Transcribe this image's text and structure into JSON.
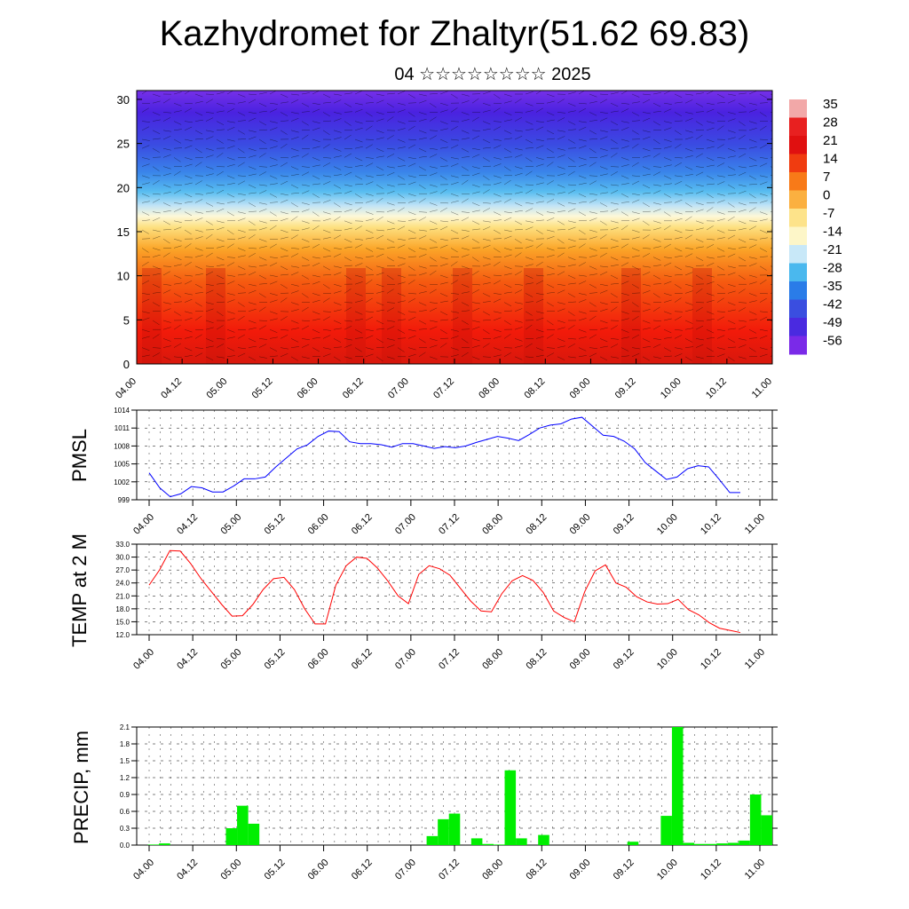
{
  "title": "Kazhydromet for Zhaltyr(51.62 69.83)",
  "subtitle": "04 ☆☆☆☆☆☆☆☆ 2025",
  "chart_data": [
    {
      "type": "heatmap",
      "name": "cross-section",
      "y_ticks": [
        0,
        5,
        10,
        15,
        20,
        25,
        30
      ],
      "ylim": [
        0,
        31
      ],
      "x_ticks": [
        "04.00",
        "04.12",
        "05.00",
        "05.12",
        "06.00",
        "06.12",
        "07.00",
        "07.12",
        "08.00",
        "08.12",
        "09.00",
        "09.12",
        "10.00",
        "10.12",
        "11.00"
      ],
      "colorbar_labels": [
        "35",
        "28",
        "21",
        "14",
        "7",
        "0",
        "-7",
        "-14",
        "-21",
        "-28",
        "-35",
        "-42",
        "-49",
        "-56"
      ],
      "colorbar_colors": [
        "#f2a8a8",
        "#e82020",
        "#e01010",
        "#f03c10",
        "#f87a18",
        "#fbb040",
        "#fde38a",
        "#fdf6c8",
        "#c8e8f8",
        "#4ab8ee",
        "#2a7ce8",
        "#3a4ee0",
        "#4a2ae0",
        "#7a2ae8"
      ],
      "temperature_profile_legend": "colors follow colorbar; warm near surface, cold aloft",
      "wind_barbs": true
    },
    {
      "type": "line",
      "name": "PMSL",
      "ylabel": "PMSL",
      "y_ticks": [
        999,
        1002,
        1005,
        1008,
        1011,
        1014
      ],
      "ylim": [
        999,
        1014
      ],
      "x_ticks": [
        "04.00",
        "04.12",
        "05.00",
        "05.12",
        "06.00",
        "06.12",
        "07.00",
        "07.12",
        "08.00",
        "08.12",
        "09.00",
        "09.12",
        "10.00",
        "10.12",
        "11.00"
      ],
      "color": "#0000ff",
      "values": [
        1003.5,
        1001,
        999.5,
        1000,
        1001.2,
        1001,
        1000.3,
        1000.3,
        1001.3,
        1002.5,
        1002.5,
        1002.8,
        1004.5,
        1006,
        1007.5,
        1008.2,
        1009.6,
        1010.5,
        1010.4,
        1008.7,
        1008.4,
        1008.4,
        1008.2,
        1007.8,
        1008.4,
        1008.4,
        1008,
        1007.6,
        1007.9,
        1007.7,
        1008,
        1008.6,
        1009.1,
        1009.6,
        1009.3,
        1008.9,
        1009.9,
        1011,
        1011.5,
        1011.7,
        1012.5,
        1012.8,
        1011.3,
        1009.8,
        1009.6,
        1008.8,
        1007.5,
        1005.2,
        1003.8,
        1002.4,
        1002.8,
        1004.2,
        1004.7,
        1004.5,
        1002.4,
        1000.2,
        1000.2
      ]
    },
    {
      "type": "line",
      "name": "TEMP",
      "ylabel": "TEMP at 2 M",
      "y_ticks": [
        "12.0",
        "15.0",
        "18.0",
        "21.0",
        "24.0",
        "27.0",
        "30.0",
        "33.0"
      ],
      "ylim": [
        12,
        33
      ],
      "x_ticks": [
        "04.00",
        "04.12",
        "05.00",
        "05.12",
        "06.00",
        "06.12",
        "07.00",
        "07.12",
        "08.00",
        "08.12",
        "09.00",
        "09.12",
        "10.00",
        "10.12",
        "11.00"
      ],
      "color": "#ff0000",
      "values": [
        23.5,
        27,
        31.5,
        31.4,
        28.5,
        25,
        22,
        19,
        16.3,
        16.4,
        19,
        22.5,
        25,
        25.3,
        22.5,
        18,
        14.5,
        14.5,
        23.5,
        28,
        30,
        29.7,
        27.5,
        24.5,
        21,
        19.2,
        26,
        28,
        27.3,
        25.8,
        22.8,
        19.8,
        17.5,
        17.3,
        21.5,
        24.5,
        25.7,
        24.6,
        21.8,
        17.5,
        16,
        15,
        22,
        26.8,
        28.2,
        24,
        23,
        20.8,
        19.6,
        19.1,
        19.2,
        20.2,
        17.8,
        16.6,
        14.8,
        13.5,
        13,
        12.5
      ]
    },
    {
      "type": "bar",
      "name": "PRECIP",
      "ylabel": "PRECIP, mm",
      "y_ticks": [
        "0.0",
        "0.3",
        "0.6",
        "0.9",
        "1.2",
        "1.5",
        "1.8",
        "2.1"
      ],
      "ylim": [
        0,
        2.1
      ],
      "x_ticks": [
        "04.00",
        "04.12",
        "05.00",
        "05.12",
        "06.00",
        "06.12",
        "07.00",
        "07.12",
        "08.00",
        "08.12",
        "09.00",
        "09.12",
        "10.00",
        "10.12",
        "11.00"
      ],
      "color": "#00ee00",
      "values": [
        0,
        0.01,
        0.03,
        0,
        0,
        0,
        0,
        0,
        0.3,
        0.7,
        0.38,
        0,
        0,
        0,
        0,
        0,
        0,
        0,
        0,
        0,
        0,
        0,
        0,
        0,
        0,
        0,
        0.16,
        0.46,
        0.56,
        0,
        0.12,
        0.02,
        0.01,
        1.33,
        0.12,
        0,
        0.18,
        0,
        0,
        0,
        0,
        0,
        0,
        0,
        0.06,
        0,
        0,
        0.52,
        2.1,
        0.04,
        0.02,
        0.02,
        0.03,
        0.04,
        0.08,
        0.9,
        0.53
      ]
    }
  ]
}
